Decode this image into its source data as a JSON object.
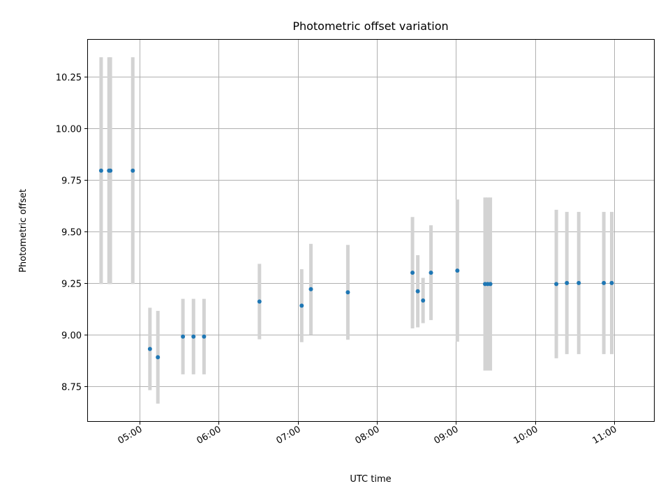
{
  "chart_data": {
    "type": "scatter",
    "title": "Photometric offset variation",
    "xlabel": "UTC time",
    "ylabel": "Photometric offset",
    "x_axis_type": "time",
    "xlim": [
      "04:21",
      "11:30"
    ],
    "ylim": [
      8.58,
      10.43
    ],
    "xticks": [
      "05:00",
      "06:00",
      "07:00",
      "08:00",
      "09:00",
      "10:00",
      "11:00"
    ],
    "yticks": [
      "8.75",
      "9.00",
      "9.25",
      "9.50",
      "9.75",
      "10.00",
      "10.25"
    ],
    "grid": true,
    "legend": "none",
    "colors": {
      "points": "#1f77b4",
      "error_bars": "#d3d3d3"
    },
    "series": [
      {
        "points": [
          {
            "x": "04:31",
            "y": 9.795,
            "yerr": 0.55
          },
          {
            "x": "04:37",
            "y": 9.795,
            "yerr": 0.55
          },
          {
            "x": "04:38",
            "y": 9.795,
            "yerr": 0.55
          },
          {
            "x": "04:55",
            "y": 9.795,
            "yerr": 0.55
          },
          {
            "x": "05:08",
            "y": 8.93,
            "yerr": 0.2
          },
          {
            "x": "05:14",
            "y": 8.89,
            "yerr": 0.225
          },
          {
            "x": "05:33",
            "y": 8.99,
            "yerr": 0.183
          },
          {
            "x": "05:41",
            "y": 8.99,
            "yerr": 0.183
          },
          {
            "x": "05:49",
            "y": 8.99,
            "yerr": 0.183
          },
          {
            "x": "06:31",
            "y": 9.16,
            "yerr": 0.183
          },
          {
            "x": "07:03",
            "y": 9.14,
            "yerr": 0.177
          },
          {
            "x": "07:10",
            "y": 9.22,
            "yerr": 0.22
          },
          {
            "x": "07:38",
            "y": 9.205,
            "yerr": 0.23
          },
          {
            "x": "08:27",
            "y": 9.3,
            "yerr": 0.27
          },
          {
            "x": "08:31",
            "y": 9.21,
            "yerr": 0.175
          },
          {
            "x": "08:35",
            "y": 9.165,
            "yerr": 0.11
          },
          {
            "x": "08:41",
            "y": 9.3,
            "yerr": 0.23
          },
          {
            "x": "09:01",
            "y": 9.31,
            "yerr": 0.345
          },
          {
            "x": "09:22",
            "y": 9.245,
            "yerr": 0.42
          },
          {
            "x": "09:24",
            "y": 9.245,
            "yerr": 0.42
          },
          {
            "x": "09:26",
            "y": 9.245,
            "yerr": 0.42
          },
          {
            "x": "10:16",
            "y": 9.245,
            "yerr": 0.36
          },
          {
            "x": "10:24",
            "y": 9.25,
            "yerr": 0.345
          },
          {
            "x": "10:33",
            "y": 9.25,
            "yerr": 0.345
          },
          {
            "x": "10:52",
            "y": 9.25,
            "yerr": 0.345
          },
          {
            "x": "10:58",
            "y": 9.25,
            "yerr": 0.345
          }
        ]
      }
    ]
  }
}
